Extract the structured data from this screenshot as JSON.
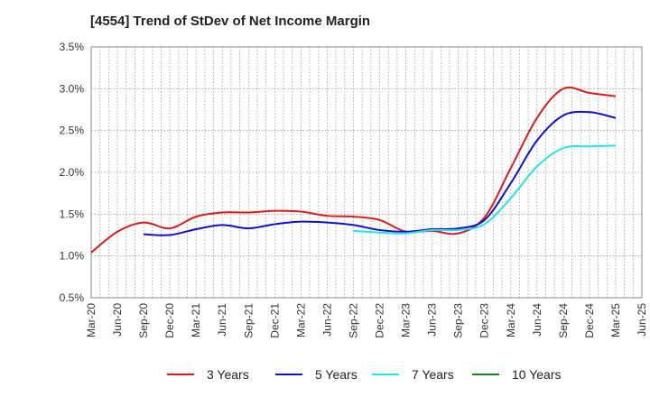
{
  "title": "[4554]  Trend of StDev of Net Income Margin",
  "chart_data": {
    "type": "line",
    "title": "[4554]  Trend of StDev of Net Income Margin",
    "xlabel": "",
    "ylabel": "",
    "categories": [
      "Mar-20",
      "Jun-20",
      "Sep-20",
      "Dec-20",
      "Mar-21",
      "Jun-21",
      "Sep-21",
      "Dec-21",
      "Mar-22",
      "Jun-22",
      "Sep-22",
      "Dec-22",
      "Mar-23",
      "Jun-23",
      "Sep-23",
      "Dec-23",
      "Mar-24",
      "Jun-24",
      "Sep-24",
      "Dec-24",
      "Mar-25",
      "Jun-25"
    ],
    "x_ticks": [
      "Mar-20",
      "Jun-20",
      "Sep-20",
      "Dec-20",
      "Mar-21",
      "Jun-21",
      "Sep-21",
      "Dec-21",
      "Mar-22",
      "Jun-22",
      "Sep-22",
      "Dec-22",
      "Mar-23",
      "Jun-23",
      "Sep-23",
      "Dec-23",
      "Mar-24",
      "Jun-24",
      "Sep-24",
      "Dec-24",
      "Mar-25",
      "Jun-25"
    ],
    "y_ticks": [
      "0.5%",
      "1.0%",
      "1.5%",
      "2.0%",
      "2.5%",
      "3.0%",
      "3.5%"
    ],
    "ylim": [
      0.5,
      3.5
    ],
    "grid": true,
    "legend_position": "bottom",
    "series": [
      {
        "name": "3 Years",
        "color": "#dd1a1a",
        "values": [
          1.04,
          1.29,
          1.4,
          1.33,
          1.47,
          1.52,
          1.52,
          1.54,
          1.53,
          1.48,
          1.47,
          1.43,
          1.29,
          1.3,
          1.27,
          1.46,
          2.05,
          2.65,
          3.0,
          2.95,
          2.91,
          null
        ]
      },
      {
        "name": "5 Years",
        "color": "#1010cc",
        "values": [
          null,
          null,
          1.26,
          1.25,
          1.32,
          1.37,
          1.33,
          1.38,
          1.41,
          1.4,
          1.37,
          1.31,
          1.29,
          1.32,
          1.33,
          1.43,
          1.87,
          2.38,
          2.68,
          2.72,
          2.65,
          null
        ]
      },
      {
        "name": "7 Years",
        "color": "#22e3e8",
        "values": [
          null,
          null,
          null,
          null,
          null,
          null,
          null,
          null,
          null,
          null,
          1.3,
          1.28,
          1.27,
          1.31,
          1.31,
          1.38,
          1.69,
          2.07,
          2.29,
          2.31,
          2.32,
          null
        ]
      },
      {
        "name": "10 Years",
        "color": "#118811",
        "values": [
          null,
          null,
          null,
          null,
          null,
          null,
          null,
          null,
          null,
          null,
          null,
          null,
          null,
          null,
          null,
          null,
          null,
          null,
          null,
          null,
          null,
          null
        ]
      }
    ]
  }
}
